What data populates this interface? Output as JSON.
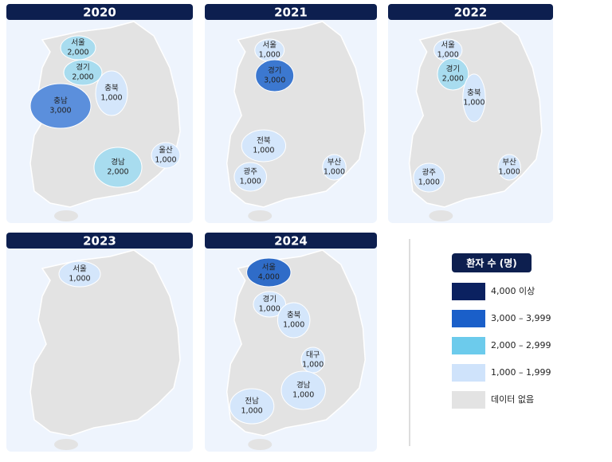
{
  "panels": [
    {
      "year": "2020",
      "regions": [
        {
          "name": "서울",
          "value": 2000,
          "value_label": "2,000",
          "color": "#a8dcef"
        },
        {
          "name": "경기",
          "value": 2000,
          "value_label": "2,000",
          "color": "#a8dcef"
        },
        {
          "name": "충북",
          "value": 1000,
          "value_label": "1,000",
          "color": "#d4e6fb"
        },
        {
          "name": "충남",
          "value": 3000,
          "value_label": "3,000",
          "color": "#5b8fdc"
        },
        {
          "name": "경남",
          "value": 2000,
          "value_label": "2,000",
          "color": "#a8dcef"
        },
        {
          "name": "울산",
          "value": 1000,
          "value_label": "1,000",
          "color": "#d4e6fb"
        }
      ]
    },
    {
      "year": "2021",
      "regions": [
        {
          "name": "서울",
          "value": 1000,
          "value_label": "1,000",
          "color": "#d4e6fb"
        },
        {
          "name": "경기",
          "value": 3000,
          "value_label": "3,000",
          "color": "#3c78d0"
        },
        {
          "name": "전북",
          "value": 1000,
          "value_label": "1,000",
          "color": "#d4e6fb"
        },
        {
          "name": "광주",
          "value": 1000,
          "value_label": "1,000",
          "color": "#d4e6fb"
        },
        {
          "name": "부산",
          "value": 1000,
          "value_label": "1,000",
          "color": "#d4e6fb"
        }
      ]
    },
    {
      "year": "2022",
      "regions": [
        {
          "name": "서울",
          "value": 1000,
          "value_label": "1,000",
          "color": "#d4e6fb"
        },
        {
          "name": "경기",
          "value": 2000,
          "value_label": "2,000",
          "color": "#a8dcef"
        },
        {
          "name": "충북",
          "value": 1000,
          "value_label": "1,000",
          "color": "#d4e6fb"
        },
        {
          "name": "광주",
          "value": 1000,
          "value_label": "1,000",
          "color": "#d4e6fb"
        },
        {
          "name": "부산",
          "value": 1000,
          "value_label": "1,000",
          "color": "#d4e6fb"
        }
      ]
    },
    {
      "year": "2023",
      "regions": [
        {
          "name": "서울",
          "value": 1000,
          "value_label": "1,000",
          "color": "#d4e6fb"
        }
      ]
    },
    {
      "year": "2024",
      "regions": [
        {
          "name": "서울",
          "value": 4000,
          "value_label": "4,000",
          "color": "#2f6cc8"
        },
        {
          "name": "경기",
          "value": 1000,
          "value_label": "1,000",
          "color": "#d4e6fb"
        },
        {
          "name": "충북",
          "value": 1000,
          "value_label": "1,000",
          "color": "#d4e6fb"
        },
        {
          "name": "대구",
          "value": 1000,
          "value_label": "1,000",
          "color": "#d4e6fb"
        },
        {
          "name": "경남",
          "value": 1000,
          "value_label": "1,000",
          "color": "#d4e6fb"
        },
        {
          "name": "전남",
          "value": 1000,
          "value_label": "1,000",
          "color": "#d4e6fb"
        }
      ]
    }
  ],
  "legend": {
    "title": "환자 수 (명)",
    "items": [
      {
        "label": "4,000 이상",
        "color": "#0b2160"
      },
      {
        "label": "3,000 – 3,999",
        "color": "#1a5fc9"
      },
      {
        "label": "2,000 – 2,999",
        "color": "#6ccbec"
      },
      {
        "label": "1,000 – 1,999",
        "color": "#cfe3fb"
      },
      {
        "label": "데이터 없음",
        "color": "#e3e3e3"
      }
    ]
  }
}
